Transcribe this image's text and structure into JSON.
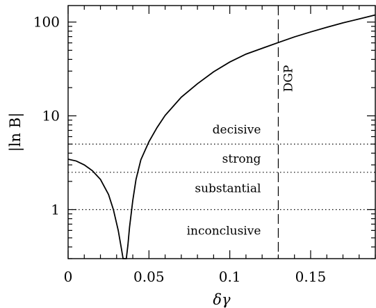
{
  "chart_data": {
    "type": "line",
    "xlabel": "δγ",
    "ylabel": "|ln B|",
    "xlim": [
      0,
      0.19
    ],
    "ylim": [
      0.3,
      150
    ],
    "y_scale": "log",
    "grid": false,
    "x_ticks": [
      {
        "value": 0,
        "label": "0"
      },
      {
        "value": 0.05,
        "label": "0.05"
      },
      {
        "value": 0.1,
        "label": "0.1"
      },
      {
        "value": 0.15,
        "label": "0.15"
      }
    ],
    "y_ticks": [
      {
        "value": 1,
        "label": "1"
      },
      {
        "value": 10,
        "label": "10"
      },
      {
        "value": 100,
        "label": "100"
      }
    ],
    "series": [
      {
        "x": [
          0,
          0.005,
          0.01,
          0.015,
          0.02,
          0.025,
          0.028,
          0.031,
          0.033,
          0.034,
          0.0345,
          0.035,
          0.0355,
          0.036,
          0.037,
          0.038,
          0.04,
          0.042,
          0.045,
          0.05,
          0.055,
          0.06,
          0.07,
          0.08,
          0.09,
          0.1,
          0.11,
          0.12,
          0.13,
          0.14,
          0.15,
          0.16,
          0.17,
          0.18,
          0.19
        ],
        "y": [
          3.45,
          3.3,
          3.0,
          2.6,
          2.1,
          1.45,
          1.0,
          0.6,
          0.38,
          0.3,
          0.3,
          0.3,
          0.3,
          0.3,
          0.42,
          0.65,
          1.25,
          2.1,
          3.4,
          5.3,
          7.5,
          10.1,
          15.8,
          22.0,
          29.5,
          37.5,
          45.5,
          52.5,
          60.5,
          69.5,
          78.5,
          88.0,
          98.0,
          108.0,
          119.0
        ]
      }
    ],
    "thresholds": [
      {
        "y": 1,
        "style": "dotted"
      },
      {
        "y": 2.5,
        "style": "dotted"
      },
      {
        "y": 5,
        "style": "dotted"
      }
    ],
    "region_labels": [
      {
        "text": "decisive",
        "y": 7.2,
        "x": 0.13
      },
      {
        "text": "strong",
        "y": 3.5,
        "x": 0.13
      },
      {
        "text": "substantial",
        "y": 1.7,
        "x": 0.13
      },
      {
        "text": "inconclusive",
        "y": 0.6,
        "x": 0.13
      }
    ],
    "vline": {
      "x": 0.13,
      "label": "DGP",
      "style": "dashed",
      "label_y": 25
    }
  }
}
